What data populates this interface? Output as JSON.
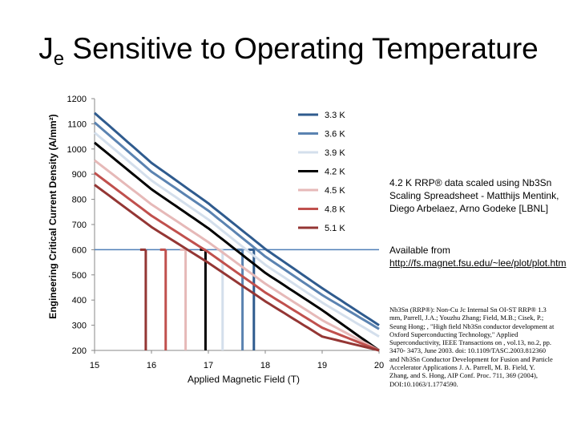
{
  "title": {
    "main": "J",
    "sub": "e",
    "rest": " Sensitive to Operating Temperature"
  },
  "notes": {
    "scaling": "4.2 K RRP® data scaled using Nb3Sn Scaling Spreadsheet - Matthijs Mentink, Diego Arbelaez, Arno Godeke [LBNL]",
    "available_label": "Available from ",
    "available_link": "http://fs.magnet.fsu.edu/~lee/plot/plot.htm",
    "reference": "Nb3Sn (RRP®): Non-Cu Jc Internal Sn OI-ST RRP® 1.3 mm, Parrell, J.A.; Youzhu Zhang; Field, M.B.; Cisek, P.; Seung Hong; , \"High field Nb3Sn conductor development at Oxford Superconducting Technology,\" Applied Superconductivity, IEEE Transactions on , vol.13, no.2, pp. 3470- 3473, June 2003. doi: 10.1109/TASC.2003.812360 and Nb3Sn Conductor Development for Fusion and Particle Accelerator Applications J. A. Parrell, M. B. Field, Y. Zhang, and S. Hong, AIP Conf. Proc. 711, 369 (2004), DOI:10.1063/1.1774590."
  },
  "chart_data": {
    "type": "line",
    "title": "Je Sensitive to Operating Temperature",
    "xlabel": "Applied Magnetic Field (T)",
    "ylabel": "Engineering Critical Current Density (A/mm²)",
    "xlim": [
      15,
      20
    ],
    "ylim": [
      200,
      1200
    ],
    "xticks": [
      15,
      16,
      17,
      18,
      19,
      20
    ],
    "yticks": [
      200,
      300,
      400,
      500,
      600,
      700,
      800,
      900,
      1000,
      1100,
      1200
    ],
    "legend_position": "top-right",
    "reference_level": 600,
    "series": [
      {
        "name": "3.3 K",
        "color": "#2f5b8e",
        "x": [
          15,
          16,
          17,
          18,
          19,
          20
        ],
        "values": [
          1143,
          945,
          784,
          603,
          447,
          300
        ],
        "drop_x": 17.8
      },
      {
        "name": "3.6 K",
        "color": "#5b83b1",
        "x": [
          15,
          16,
          17,
          18,
          19,
          20
        ],
        "values": [
          1105,
          910,
          755,
          573,
          420,
          285
        ],
        "drop_x": 17.6
      },
      {
        "name": "3.9 K",
        "color": "#d4dfec",
        "x": [
          15,
          16,
          17,
          18,
          19,
          20
        ],
        "values": [
          1065,
          875,
          720,
          540,
          390,
          255
        ],
        "drop_x": 17.25
      },
      {
        "name": "4.2 K",
        "color": "#000000",
        "x": [
          15,
          16,
          17,
          18,
          19,
          20
        ],
        "values": [
          1025,
          840,
          685,
          508,
          360,
          200
        ],
        "drop_x": 16.95
      },
      {
        "name": "4.5 K",
        "color": "#e6b9b8",
        "x": [
          15,
          16,
          17,
          18,
          19,
          20
        ],
        "values": [
          955,
          780,
          630,
          465,
          320,
          200
        ],
        "drop_x": 16.6
      },
      {
        "name": "4.8 K",
        "color": "#c0504d",
        "x": [
          15,
          16,
          17,
          18,
          19,
          20
        ],
        "values": [
          905,
          735,
          590,
          430,
          290,
          200
        ],
        "drop_x": 16.25
      },
      {
        "name": "5.1 K",
        "color": "#943634",
        "x": [
          15,
          16,
          17,
          18,
          19,
          20
        ],
        "values": [
          858,
          690,
          548,
          395,
          255,
          200
        ],
        "drop_x": 15.9
      }
    ]
  }
}
